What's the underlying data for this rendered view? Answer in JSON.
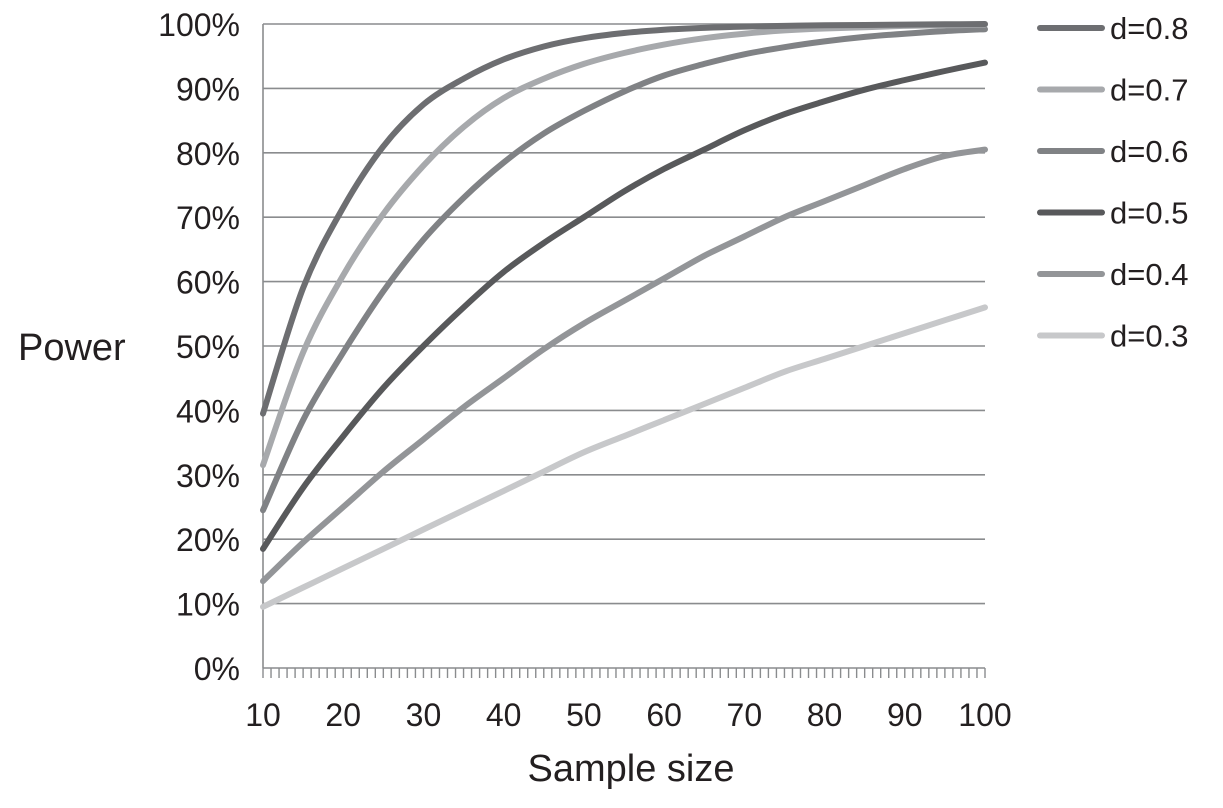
{
  "chart_data": {
    "type": "line",
    "title": "",
    "xlabel": "Sample size",
    "ylabel": "Power",
    "xlim": [
      10,
      100
    ],
    "ylim": [
      0,
      100
    ],
    "x_ticks": [
      10,
      20,
      30,
      40,
      50,
      60,
      70,
      80,
      90,
      100
    ],
    "x_tick_labels": [
      "10",
      "20",
      "30",
      "40",
      "50",
      "60",
      "70",
      "80",
      "90",
      "100"
    ],
    "y_ticks": [
      0,
      10,
      20,
      30,
      40,
      50,
      60,
      70,
      80,
      90,
      100
    ],
    "y_tick_labels": [
      "0%",
      "10%",
      "20%",
      "30%",
      "40%",
      "50%",
      "60%",
      "70%",
      "80%",
      "90%",
      "100%"
    ],
    "minor_x_tick_step": 1,
    "grid": "horizontal",
    "legend_position": "right",
    "x": [
      10,
      15,
      20,
      25,
      30,
      35,
      40,
      45,
      50,
      55,
      60,
      65,
      70,
      75,
      80,
      85,
      90,
      95,
      100
    ],
    "series": [
      {
        "name": "d=0.8",
        "color": "#6d6e71",
        "values": [
          39.5,
          59,
          71.5,
          81,
          87.5,
          91.5,
          94.5,
          96.5,
          97.8,
          98.6,
          99.1,
          99.4,
          99.6,
          99.7,
          99.8,
          99.85,
          99.9,
          99.95,
          100
        ]
      },
      {
        "name": "d=0.7",
        "color": "#a7a9ac",
        "values": [
          31.5,
          49,
          61,
          70.5,
          78,
          84,
          88.5,
          91.5,
          93.8,
          95.5,
          96.8,
          97.8,
          98.5,
          99,
          99.3,
          99.5,
          99.7,
          99.8,
          99.9
        ]
      },
      {
        "name": "d=0.6",
        "color": "#808285",
        "values": [
          24.5,
          38.5,
          49,
          58.5,
          66.5,
          73,
          78.5,
          83,
          86.5,
          89.5,
          92,
          93.8,
          95.3,
          96.4,
          97.3,
          98,
          98.5,
          98.9,
          99.2
        ]
      },
      {
        "name": "d=0.5",
        "color": "#58595b",
        "values": [
          18.5,
          28,
          36,
          43.5,
          50,
          56,
          61.5,
          66,
          70,
          74,
          77.5,
          80.5,
          83.5,
          86,
          88,
          89.8,
          91.3,
          92.7,
          94
        ]
      },
      {
        "name": "d=0.4",
        "color": "#939598",
        "values": [
          13.5,
          19.5,
          25,
          30.5,
          35.5,
          40.5,
          45,
          49.5,
          53.5,
          57,
          60.5,
          64,
          67,
          70,
          72.5,
          75,
          77.5,
          79.5,
          80.5
        ]
      },
      {
        "name": "d=0.3",
        "color": "#c7c8ca",
        "values": [
          9.5,
          12.5,
          15.5,
          18.5,
          21.5,
          24.5,
          27.5,
          30.5,
          33.5,
          36,
          38.5,
          41,
          43.5,
          46,
          48,
          50,
          52,
          54,
          56
        ]
      }
    ]
  }
}
